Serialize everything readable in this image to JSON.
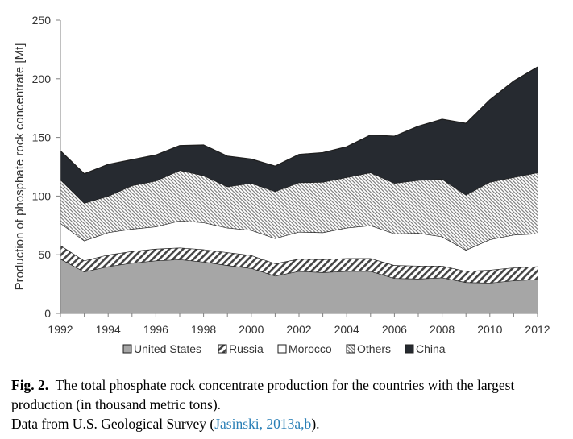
{
  "chart_data": {
    "type": "area",
    "stacked": true,
    "x": [
      1992,
      1993,
      1994,
      1995,
      1996,
      1997,
      1998,
      1999,
      2000,
      2001,
      2002,
      2003,
      2004,
      2005,
      2006,
      2007,
      2008,
      2009,
      2010,
      2011,
      2012
    ],
    "xticks": [
      "1992",
      "1994",
      "1996",
      "1998",
      "2000",
      "2002",
      "2004",
      "2006",
      "2008",
      "2010",
      "2012"
    ],
    "ylabel": "Production of phosphate rock  concentrate [Mt]",
    "ylim": [
      0,
      250
    ],
    "yticks": [
      "0",
      "50",
      "100",
      "150",
      "200",
      "250"
    ],
    "legend_position": "bottom",
    "series": [
      {
        "name": "United States",
        "pattern": "solid-gray",
        "color": "#a6a6a6",
        "values": [
          46.5,
          35.5,
          40,
          43,
          45,
          46,
          44,
          41,
          38.5,
          32,
          36,
          35,
          36,
          36,
          30,
          29.5,
          30.5,
          26.5,
          26,
          28,
          29
        ]
      },
      {
        "name": "Russia",
        "pattern": "wide-diagonal-hatch",
        "color": "#4d4d4d",
        "values": [
          11.5,
          9.5,
          10,
          10,
          10,
          10,
          10.5,
          11,
          11,
          10.5,
          10.5,
          11,
          11,
          11,
          11,
          11,
          10,
          9.5,
          11,
          11,
          11
        ]
      },
      {
        "name": "Morocco",
        "pattern": "white",
        "color": "#ffffff",
        "values": [
          19,
          17,
          19,
          19,
          19,
          23,
          23,
          21,
          21.5,
          21.5,
          23,
          23,
          26,
          28,
          27,
          28,
          25,
          18,
          26,
          28,
          28
        ]
      },
      {
        "name": "Others",
        "pattern": "fine-diagonal-hatch",
        "color": "#7f7f7f",
        "values": [
          37,
          32,
          31,
          37,
          39,
          43,
          40,
          35,
          40,
          40,
          42,
          43,
          43,
          45,
          43,
          45,
          49,
          47,
          49,
          49,
          52
        ]
      },
      {
        "name": "China",
        "pattern": "solid-dark",
        "color": "#262a30",
        "values": [
          24.5,
          25,
          27,
          22,
          22,
          21,
          26,
          26,
          20.5,
          21.5,
          24,
          25,
          26,
          32,
          40,
          46,
          51,
          61,
          70,
          82,
          90
        ]
      }
    ]
  },
  "caption": {
    "fig_label": "Fig. 2.",
    "text": "The total phosphate rock concentrate production for the countries with the largest production (in thousand metric tons).",
    "source_prefix": "Data from U.S. Geological Survey (",
    "source_link": "Jasinski, 2013a,b",
    "source_suffix": ")."
  }
}
